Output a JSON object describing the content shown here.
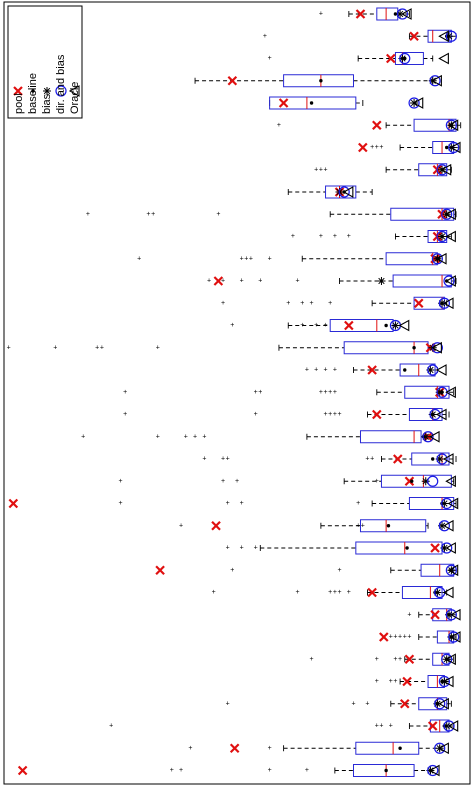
{
  "chart_data": {
    "type": "boxplot",
    "orientation": "horizontal",
    "rotated_figure": true,
    "value_axis": {
      "range": [
        0,
        1
      ],
      "direction": "value increases to the right"
    },
    "grid": false,
    "legend": {
      "placement": "top-left",
      "entries": [
        {
          "label": "pool",
          "marker": "x",
          "color": "#e01010"
        },
        {
          "label": "baseline",
          "marker": "dot",
          "color": "#000000"
        },
        {
          "label": "bias",
          "marker": "asterisk",
          "color": "#000000"
        },
        {
          "label": "dir. and bias",
          "marker": "circle",
          "color": "#1a1ae6"
        },
        {
          "label": "Oracle",
          "marker": "triangle",
          "color": "#000000"
        }
      ]
    },
    "colors": {
      "box": "#2a2ad6",
      "median": "#e01010",
      "pool": "#e01010",
      "circle": "#1a1ae6"
    },
    "rows": [
      {
        "q1": 0.8,
        "med": 0.82,
        "q3": 0.845,
        "wlo": 0.74,
        "whi": 0.87,
        "out": [
          0.68
        ],
        "pool": 0.765,
        "baseline": 0.84,
        "bias": 0.85,
        "dirbias": 0.855,
        "oracle": 0.865
      },
      {
        "q1": 0.91,
        "med": 0.92,
        "q3": 0.96,
        "wlo": 0.87,
        "whi": 0.97,
        "out": [
          0.56
        ],
        "pool": 0.88,
        "baseline": 0.95,
        "bias": 0.955,
        "dirbias": 0.96,
        "oracle": 0.945
      },
      {
        "q1": 0.84,
        "med": 0.855,
        "q3": 0.9,
        "wlo": 0.76,
        "whi": 0.92,
        "out": [
          0.57
        ],
        "pool": 0.83,
        "baseline": 0.86,
        "bias": 0.855,
        "dirbias": 0.86,
        "oracle": 0.945
      },
      {
        "q1": 0.6,
        "med": 0.68,
        "q3": 0.75,
        "wlo": 0.41,
        "whi": 0.92,
        "out": [],
        "pool": 0.49,
        "baseline": 0.68,
        "bias": 0.92,
        "dirbias": 0.925,
        "oracle": 0.93
      },
      {
        "q1": 0.57,
        "med": 0.65,
        "q3": 0.755,
        "wlo": 0.57,
        "whi": 0.77,
        "out": [],
        "pool": 0.6,
        "baseline": 0.66,
        "bias": 0.88,
        "dirbias": 0.88,
        "oracle": 0.89
      },
      {
        "q1": 0.88,
        "med": 0.955,
        "q3": 0.97,
        "wlo": 0.82,
        "whi": 0.98,
        "out": [
          0.59
        ],
        "pool": 0.8,
        "baseline": 0.96,
        "bias": 0.96,
        "dirbias": 0.96,
        "oracle": 0.965
      },
      {
        "q1": 0.92,
        "med": 0.94,
        "q3": 0.965,
        "wlo": 0.85,
        "whi": 0.975,
        "out": [
          0.79,
          0.8,
          0.81
        ],
        "pool": 0.77,
        "baseline": 0.95,
        "bias": 0.96,
        "dirbias": 0.965,
        "oracle": 0.97
      },
      {
        "q1": 0.89,
        "med": 0.93,
        "q3": 0.95,
        "wlo": 0.82,
        "whi": 0.96,
        "out": [
          0.67,
          0.68,
          0.69
        ],
        "pool": 0.93,
        "baseline": 0.94,
        "bias": 0.94,
        "dirbias": 0.94,
        "oracle": 0.95
      },
      {
        "q1": 0.69,
        "med": 0.72,
        "q3": 0.755,
        "wlo": 0.61,
        "whi": 0.79,
        "out": [],
        "pool": 0.72,
        "baseline": 0.73,
        "bias": 0.72,
        "dirbias": 0.73,
        "oracle": 0.74
      },
      {
        "q1": 0.83,
        "med": 0.94,
        "q3": 0.965,
        "wlo": 0.7,
        "whi": 0.97,
        "out": [
          0.18,
          0.31,
          0.32,
          0.46
        ],
        "pool": 0.94,
        "baseline": 0.95,
        "bias": 0.95,
        "dirbias": 0.95,
        "oracle": 0.96
      },
      {
        "q1": 0.91,
        "med": 0.93,
        "q3": 0.95,
        "wlo": 0.84,
        "whi": 0.96,
        "out": [
          0.62,
          0.68,
          0.71,
          0.74
        ],
        "pool": 0.93,
        "baseline": 0.94,
        "bias": 0.94,
        "dirbias": 0.94,
        "oracle": 0.96
      },
      {
        "q1": 0.82,
        "med": 0.92,
        "q3": 0.93,
        "wlo": 0.64,
        "whi": 0.935,
        "out": [
          0.29,
          0.51,
          0.52,
          0.53,
          0.57
        ],
        "pool": 0.925,
        "baseline": 0.93,
        "bias": 0.93,
        "dirbias": 0.93,
        "oracle": 0.94
      },
      {
        "q1": 0.835,
        "med": 0.94,
        "q3": 0.96,
        "wlo": 0.72,
        "whi": 0.97,
        "out": [
          0.44,
          0.47,
          0.51,
          0.55,
          0.63
        ],
        "pool": 0.46,
        "baseline": 0.95,
        "bias": 0.81,
        "dirbias": 0.955,
        "oracle": 0.96
      },
      {
        "q1": 0.88,
        "med": 0.94,
        "q3": 0.945,
        "wlo": 0.79,
        "whi": 0.95,
        "out": [
          0.47,
          0.61,
          0.64,
          0.66,
          0.7
        ],
        "pool": 0.89,
        "baseline": 0.94,
        "bias": 0.94,
        "dirbias": 0.945,
        "oracle": 0.955
      },
      {
        "q1": 0.7,
        "med": 0.8,
        "q3": 0.835,
        "wlo": 0.61,
        "whi": 0.85,
        "out": [
          0.49,
          0.64,
          0.67,
          0.69
        ],
        "pool": 0.74,
        "baseline": 0.82,
        "bias": 0.84,
        "dirbias": 0.84,
        "oracle": 0.86
      },
      {
        "q1": 0.73,
        "med": 0.88,
        "q3": 0.91,
        "wlo": 0.59,
        "whi": 0.92,
        "out": [
          0.01,
          0.11,
          0.2,
          0.21,
          0.33
        ],
        "pool": 0.915,
        "baseline": 0.88,
        "bias": 0.92,
        "dirbias": 0.93,
        "oracle": 0.93
      },
      {
        "q1": 0.85,
        "med": 0.89,
        "q3": 0.925,
        "wlo": 0.75,
        "whi": 0.93,
        "out": [
          0.65,
          0.67,
          0.69,
          0.71
        ],
        "pool": 0.79,
        "baseline": 0.86,
        "bias": 0.915,
        "dirbias": 0.92,
        "oracle": 0.94
      },
      {
        "q1": 0.86,
        "med": 0.93,
        "q3": 0.955,
        "wlo": 0.8,
        "whi": 0.965,
        "out": [
          0.26,
          0.54,
          0.55,
          0.68,
          0.69,
          0.7,
          0.71
        ],
        "pool": 0.935,
        "baseline": 0.94,
        "bias": 0.935,
        "dirbias": 0.94,
        "oracle": 0.96
      },
      {
        "q1": 0.87,
        "med": 0.92,
        "q3": 0.94,
        "wlo": 0.78,
        "whi": 0.955,
        "out": [
          0.26,
          0.54,
          0.69,
          0.7,
          0.71,
          0.72
        ],
        "pool": 0.8,
        "baseline": 0.92,
        "bias": 0.92,
        "dirbias": 0.925,
        "oracle": 0.94
      },
      {
        "q1": 0.765,
        "med": 0.88,
        "q3": 0.895,
        "wlo": 0.65,
        "whi": 0.92,
        "out": [
          0.17,
          0.33,
          0.39,
          0.41,
          0.43
        ],
        "pool": 0.91,
        "baseline": 0.9,
        "bias": 0.905,
        "dirbias": 0.91,
        "oracle": 0.925
      },
      {
        "q1": 0.875,
        "med": 0.94,
        "q3": 0.955,
        "wlo": 0.81,
        "whi": 0.97,
        "out": [
          0.43,
          0.47,
          0.48,
          0.78,
          0.79
        ],
        "pool": 0.845,
        "baseline": 0.92,
        "bias": 0.935,
        "dirbias": 0.94,
        "oracle": 0.955
      },
      {
        "q1": 0.81,
        "med": 0.9,
        "q3": 0.96,
        "wlo": 0.73,
        "whi": 0.965,
        "out": [
          0.25,
          0.47,
          0.5,
          0.8
        ],
        "pool": 0.87,
        "baseline": 0.875,
        "bias": 0.905,
        "dirbias": 0.92,
        "oracle": 0.96
      },
      {
        "q1": 0.87,
        "med": 0.94,
        "q3": 0.965,
        "wlo": 0.79,
        "whi": 0.97,
        "out": [
          0.25,
          0.48,
          0.51,
          0.76
        ],
        "pool": 0.02,
        "baseline": 0.94,
        "bias": 0.945,
        "dirbias": 0.95,
        "oracle": 0.965
      },
      {
        "q1": 0.765,
        "med": 0.82,
        "q3": 0.905,
        "wlo": 0.68,
        "whi": 0.91,
        "out": [
          0.38,
          0.76,
          0.77
        ],
        "pool": 0.455,
        "baseline": 0.825,
        "bias": 0.94,
        "dirbias": 0.945,
        "oracle": 0.955
      },
      {
        "q1": 0.755,
        "med": 0.86,
        "q3": 0.94,
        "wlo": 0.55,
        "whi": 0.945,
        "out": [
          0.48,
          0.51,
          0.54
        ],
        "pool": 0.925,
        "baseline": 0.865,
        "bias": 0.945,
        "dirbias": 0.95,
        "oracle": 0.96
      },
      {
        "q1": 0.895,
        "med": 0.935,
        "q3": 0.965,
        "wlo": 0.83,
        "whi": 0.97,
        "out": [
          0.49,
          0.72
        ],
        "pool": 0.335,
        "baseline": 0.96,
        "bias": 0.96,
        "dirbias": 0.96,
        "oracle": 0.965
      },
      {
        "q1": 0.855,
        "med": 0.915,
        "q3": 0.94,
        "wlo": 0.78,
        "whi": 0.95,
        "out": [
          0.45,
          0.63,
          0.7,
          0.71,
          0.72,
          0.74
        ],
        "pool": 0.79,
        "baseline": 0.925,
        "bias": 0.93,
        "dirbias": 0.935,
        "oracle": 0.955
      },
      {
        "q1": 0.92,
        "med": 0.95,
        "q3": 0.96,
        "wlo": 0.89,
        "whi": 0.97,
        "out": [
          0.87
        ],
        "pool": 0.925,
        "baseline": 0.955,
        "bias": 0.955,
        "dirbias": 0.96,
        "oracle": 0.97
      },
      {
        "q1": 0.93,
        "med": 0.955,
        "q3": 0.965,
        "wlo": 0.89,
        "whi": 0.97,
        "out": [
          0.83,
          0.84,
          0.85,
          0.86,
          0.87
        ],
        "pool": 0.815,
        "baseline": 0.96,
        "bias": 0.96,
        "dirbias": 0.965,
        "oracle": 0.97
      },
      {
        "q1": 0.92,
        "med": 0.94,
        "q3": 0.955,
        "wlo": 0.86,
        "whi": 0.965,
        "out": [
          0.66,
          0.8,
          0.84,
          0.85
        ],
        "pool": 0.87,
        "baseline": 0.95,
        "bias": 0.95,
        "dirbias": 0.95,
        "oracle": 0.96
      },
      {
        "q1": 0.91,
        "med": 0.93,
        "q3": 0.945,
        "wlo": 0.85,
        "whi": 0.955,
        "out": [
          0.8,
          0.83,
          0.84
        ],
        "pool": 0.865,
        "baseline": 0.94,
        "bias": 0.945,
        "dirbias": 0.945,
        "oracle": 0.955
      },
      {
        "q1": 0.89,
        "med": 0.93,
        "q3": 0.95,
        "wlo": 0.83,
        "whi": 0.96,
        "out": [
          0.48,
          0.75,
          0.78
        ],
        "pool": 0.86,
        "baseline": 0.93,
        "bias": 0.93,
        "dirbias": 0.935,
        "oracle": 0.945
      },
      {
        "q1": 0.915,
        "med": 0.935,
        "q3": 0.955,
        "wlo": 0.87,
        "whi": 0.965,
        "out": [
          0.23,
          0.8,
          0.81,
          0.83
        ],
        "pool": 0.92,
        "baseline": 0.945,
        "bias": 0.95,
        "dirbias": 0.955,
        "oracle": 0.965
      },
      {
        "q1": 0.755,
        "med": 0.835,
        "q3": 0.89,
        "wlo": 0.6,
        "whi": 0.935,
        "out": [
          0.4,
          0.57
        ],
        "pool": 0.495,
        "baseline": 0.85,
        "bias": 0.935,
        "dirbias": 0.935,
        "oracle": 0.945
      },
      {
        "q1": 0.75,
        "med": 0.82,
        "q3": 0.88,
        "wlo": 0.71,
        "whi": 0.915,
        "out": [
          0.36,
          0.38,
          0.57,
          0.65
        ],
        "pool": 0.04,
        "baseline": 0.82,
        "bias": 0.915,
        "dirbias": 0.92,
        "oracle": 0.925
      }
    ]
  }
}
